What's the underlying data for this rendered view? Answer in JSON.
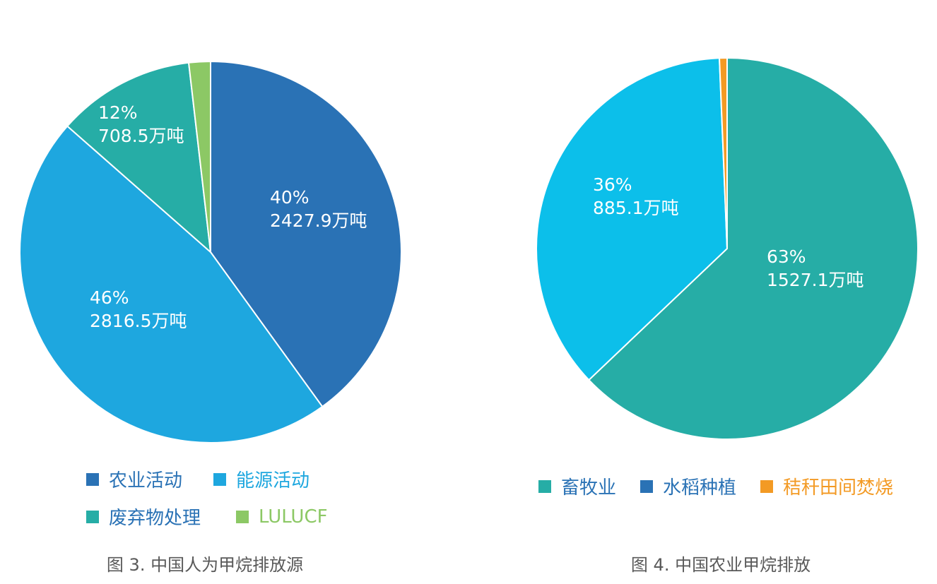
{
  "chart_data": [
    {
      "type": "pie",
      "caption": "图 3. 中国人为甲烷排放源",
      "slices": [
        {
          "name": "农业活动",
          "value": 2427.9,
          "pct": "40%",
          "label": "2427.9万吨",
          "color": "#2A72B5",
          "label_color": "#FFFFFF",
          "legend_color": "#2A72B5"
        },
        {
          "name": "能源活动",
          "value": 2816.5,
          "pct": "46%",
          "label": "2816.5万吨",
          "color": "#1EA7DF",
          "label_color": "#FFFFFF",
          "legend_color": "#1EA7DF"
        },
        {
          "name": "废弃物处理",
          "value": 708.5,
          "pct": "12%",
          "label": "708.5万吨",
          "color": "#26ADA6",
          "label_color": "#FFFFFF",
          "legend_color": "#2A72B5"
        },
        {
          "name": "LULUCF",
          "value": 111,
          "pct": "2%",
          "label": "111万吨",
          "color": "#8CC865",
          "label_color": "#8CC865",
          "legend_color": "#8CC865"
        }
      ]
    },
    {
      "type": "pie",
      "caption": "图 4. 中国农业甲烷排放",
      "slices": [
        {
          "name": "畜牧业",
          "value": 1527.1,
          "pct": "63%",
          "label": "1527.1万吨",
          "color": "#26ADA6",
          "label_color": "#FFFFFF",
          "legend_color": "#2A72B5"
        },
        {
          "name": "水稻种植",
          "value": 885.1,
          "pct": "36%",
          "label": "885.1万吨",
          "color": "#0CBFEA",
          "label_color": "#FFFFFF",
          "legend_color": "#2A72B5"
        },
        {
          "name": "秸秆田间焚烧",
          "value": 15.7,
          "pct": "1%",
          "label": "15.7万吨",
          "color": "#F39A24",
          "label_color": "#F39A24",
          "legend_color": "#F39A24"
        }
      ]
    }
  ]
}
